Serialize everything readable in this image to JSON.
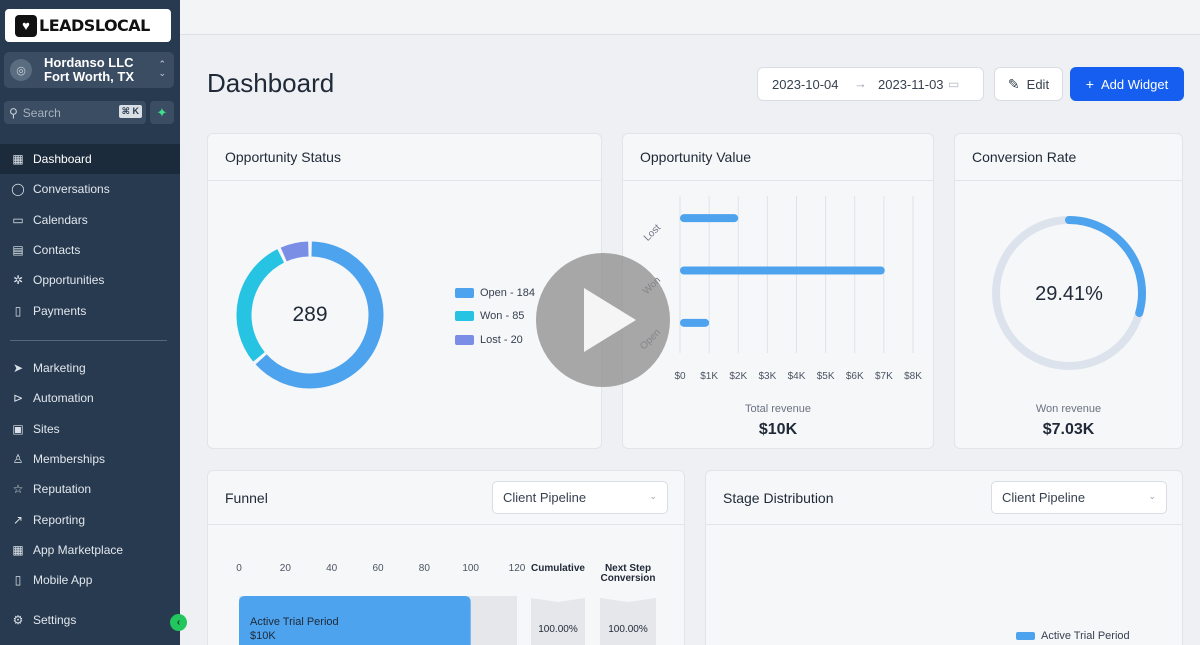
{
  "brand": {
    "logo_text": "LEADSLOCAL"
  },
  "account": {
    "name": "Hordanso LLC",
    "location": "Fort Worth, TX"
  },
  "search": {
    "placeholder": "Search",
    "shortcut": "⌘ K"
  },
  "nav": {
    "primary": [
      {
        "label": "Dashboard",
        "icon": "grid-icon",
        "active": true
      },
      {
        "label": "Conversations",
        "icon": "chat-icon"
      },
      {
        "label": "Calendars",
        "icon": "calendar-icon"
      },
      {
        "label": "Contacts",
        "icon": "contacts-icon"
      },
      {
        "label": "Opportunities",
        "icon": "opportunities-icon"
      },
      {
        "label": "Payments",
        "icon": "payments-icon"
      }
    ],
    "secondary": [
      {
        "label": "Marketing",
        "icon": "send-icon"
      },
      {
        "label": "Automation",
        "icon": "automation-icon"
      },
      {
        "label": "Sites",
        "icon": "sites-icon"
      },
      {
        "label": "Memberships",
        "icon": "membership-icon"
      },
      {
        "label": "Reputation",
        "icon": "star-icon"
      },
      {
        "label": "Reporting",
        "icon": "trend-icon"
      },
      {
        "label": "App Marketplace",
        "icon": "apps-icon"
      },
      {
        "label": "Mobile App",
        "icon": "mobile-icon"
      }
    ],
    "settings": "Settings"
  },
  "header": {
    "title": "Dashboard",
    "date_start": "2023-10-04",
    "date_end": "2023-11-03",
    "edit_label": "Edit",
    "add_widget_label": "Add Widget",
    "accent": "#155eef"
  },
  "opportunity_status": {
    "title": "Opportunity Status",
    "total": "289",
    "legend": [
      {
        "label": "Open - 184",
        "value": 184,
        "color": "#4ea3ee"
      },
      {
        "label": "Won - 85",
        "value": 85,
        "color": "#27c3e3"
      },
      {
        "label": "Lost - 20",
        "value": 20,
        "color": "#7b8ee6"
      }
    ]
  },
  "opportunity_value": {
    "title": "Opportunity Value",
    "total_label": "Total revenue",
    "total_value": "$10K"
  },
  "conversion_rate": {
    "title": "Conversion Rate",
    "value_label": "29.41%",
    "value": 29.41,
    "won_label": "Won revenue",
    "won_value": "$7.03K"
  },
  "funnel": {
    "title": "Funnel",
    "pipeline": "Client Pipeline",
    "axis_ticks": [
      "0",
      "20",
      "40",
      "60",
      "80",
      "100",
      "120"
    ],
    "cumulative_label": "Cumulative",
    "next_step_label": "Next Step Conversion",
    "row": {
      "stage": "Active Trial Period",
      "value": "$10K",
      "cumulative": "100.00%",
      "next_step": "100.00%"
    }
  },
  "stage_distribution": {
    "title": "Stage Distribution",
    "pipeline": "Client Pipeline",
    "legend_label": "Active Trial Period"
  },
  "chart_data": [
    {
      "type": "pie",
      "title": "Opportunity Status",
      "categories": [
        "Open",
        "Won",
        "Lost"
      ],
      "values": [
        184,
        85,
        20
      ],
      "colors": [
        "#4ea3ee",
        "#27c3e3",
        "#7b8ee6"
      ],
      "center_label": "289",
      "legend": "right"
    },
    {
      "type": "bar",
      "orientation": "horizontal",
      "title": "Opportunity Value",
      "categories": [
        "Lost",
        "Won",
        "Open"
      ],
      "values": [
        2000,
        7030,
        1000
      ],
      "xlim": [
        0,
        8000
      ],
      "xticks": [
        "$0",
        "$1K",
        "$2K",
        "$3K",
        "$4K",
        "$5K",
        "$6K",
        "$7K",
        "$8K"
      ],
      "color": "#4ea3ee",
      "grid": true
    },
    {
      "type": "pie",
      "title": "Conversion Rate",
      "categories": [
        "Won",
        "Remaining"
      ],
      "values": [
        29.41,
        70.59
      ],
      "colors": [
        "#4ea3ee",
        "#dde3ec"
      ],
      "center_label": "29.41%"
    },
    {
      "type": "bar",
      "orientation": "horizontal",
      "title": "Funnel",
      "categories": [
        "Active Trial Period"
      ],
      "values": [
        100
      ],
      "xlim": [
        0,
        120
      ],
      "xticks": [
        "0",
        "20",
        "40",
        "60",
        "80",
        "100",
        "120"
      ],
      "color": "#4ea3ee"
    }
  ]
}
